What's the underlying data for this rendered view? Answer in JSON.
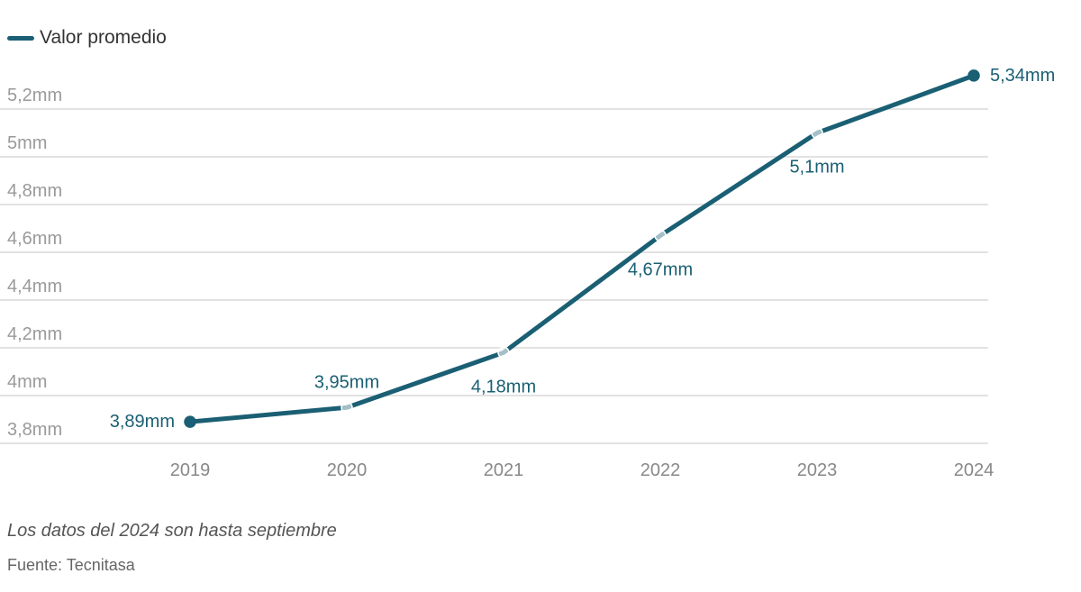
{
  "chart_data": {
    "type": "line",
    "title": "",
    "xlabel": "",
    "ylabel": "",
    "categories": [
      "2019",
      "2020",
      "2021",
      "2022",
      "2023",
      "2024"
    ],
    "series": [
      {
        "name": "Valor promedio",
        "values": [
          3.89,
          3.95,
          4.18,
          4.67,
          5.1,
          5.34
        ],
        "labels": [
          "3,89mm",
          "3,95mm",
          "4,18mm",
          "4,67mm",
          "5,1mm",
          "5,34mm"
        ]
      }
    ],
    "yticks": [
      3.8,
      4.0,
      4.2,
      4.4,
      4.6,
      4.8,
      5.0,
      5.2
    ],
    "ytick_labels": [
      "3,8mm",
      "4mm",
      "4,2mm",
      "4,4mm",
      "4,6mm",
      "4,8mm",
      "5mm",
      "5,2mm"
    ],
    "ylim": [
      3.8,
      5.2
    ],
    "grid": true,
    "legend_position": "top-left",
    "colors": {
      "line": "#1a5f73",
      "grid": "#e2e2e2",
      "tick": "#9a9a9a",
      "label": "#1a5f73"
    }
  },
  "legend": {
    "label": "Valor promedio"
  },
  "footer": {
    "note": "Los datos del 2024 son hasta septiembre",
    "source": "Fuente: Tecnitasa"
  }
}
